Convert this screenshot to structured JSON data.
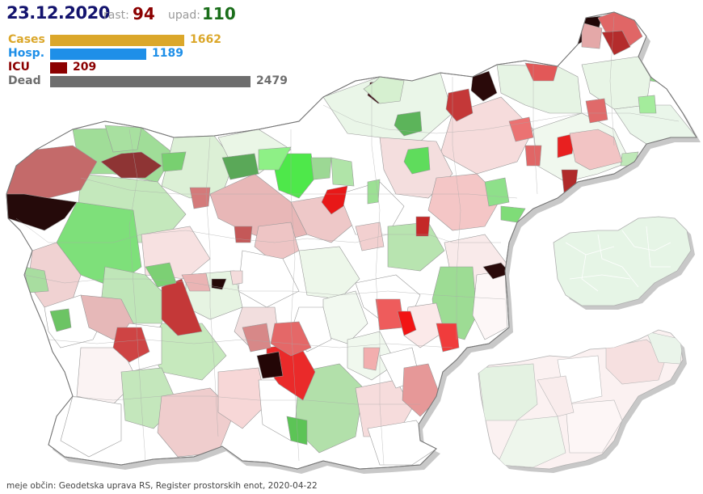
{
  "header": {
    "date": "23.12.2020",
    "rast_label": "rast:",
    "rast_value": "94",
    "upad_label": "upad:",
    "upad_value": "110"
  },
  "stats": {
    "max_scale": 2479,
    "rows": [
      {
        "label": "Cases",
        "value": 1662,
        "color": "#dba72a"
      },
      {
        "label": "Hosp.",
        "value": 1189,
        "color": "#1e8fe8"
      },
      {
        "label": "ICU",
        "value": 209,
        "color": "#8b0000"
      },
      {
        "label": "Dead",
        "value": 2479,
        "color": "#6e6e6e"
      }
    ]
  },
  "colors": {
    "date": "#14146e",
    "rast": "#8b0000",
    "upad": "#1a6e1a",
    "map_base": "#ffffff",
    "border": "#9a9a9a",
    "shadow": "#c8c8c8"
  },
  "footer": {
    "text": "meje občin: Geodetska uprava RS, Register prostorskih enot, 2020-04-22"
  }
}
